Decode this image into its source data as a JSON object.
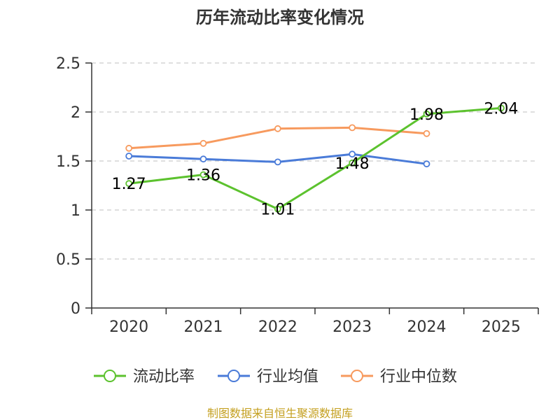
{
  "chart_data": {
    "type": "line",
    "title": "历年流动比率变化情况",
    "categories": [
      "2020",
      "2021",
      "2022",
      "2023",
      "2024",
      "2025"
    ],
    "ylim": [
      0,
      2.5
    ],
    "yticks": [
      "0",
      "0.5",
      "1",
      "1.5",
      "2",
      "2.5"
    ],
    "ytick_values": [
      0,
      0.5,
      1,
      1.5,
      2,
      2.5
    ],
    "grid": true,
    "legend_position": "bottom",
    "series": [
      {
        "name": "流动比率",
        "color": "#5cc22e",
        "values": [
          1.27,
          1.36,
          1.01,
          1.48,
          1.98,
          2.04
        ],
        "labels": [
          "1.27",
          "1.36",
          "1.01",
          "1.48",
          "1.98",
          "2.04"
        ]
      },
      {
        "name": "行业均值",
        "color": "#4a7bd8",
        "values": [
          1.55,
          1.52,
          1.49,
          1.57,
          1.47,
          null
        ]
      },
      {
        "name": "行业中位数",
        "color": "#f79a5e",
        "values": [
          1.63,
          1.68,
          1.83,
          1.84,
          1.78,
          null
        ]
      }
    ]
  },
  "source": {
    "text": "制图数据来自恒生聚源数据库",
    "color": "#c4a020"
  }
}
